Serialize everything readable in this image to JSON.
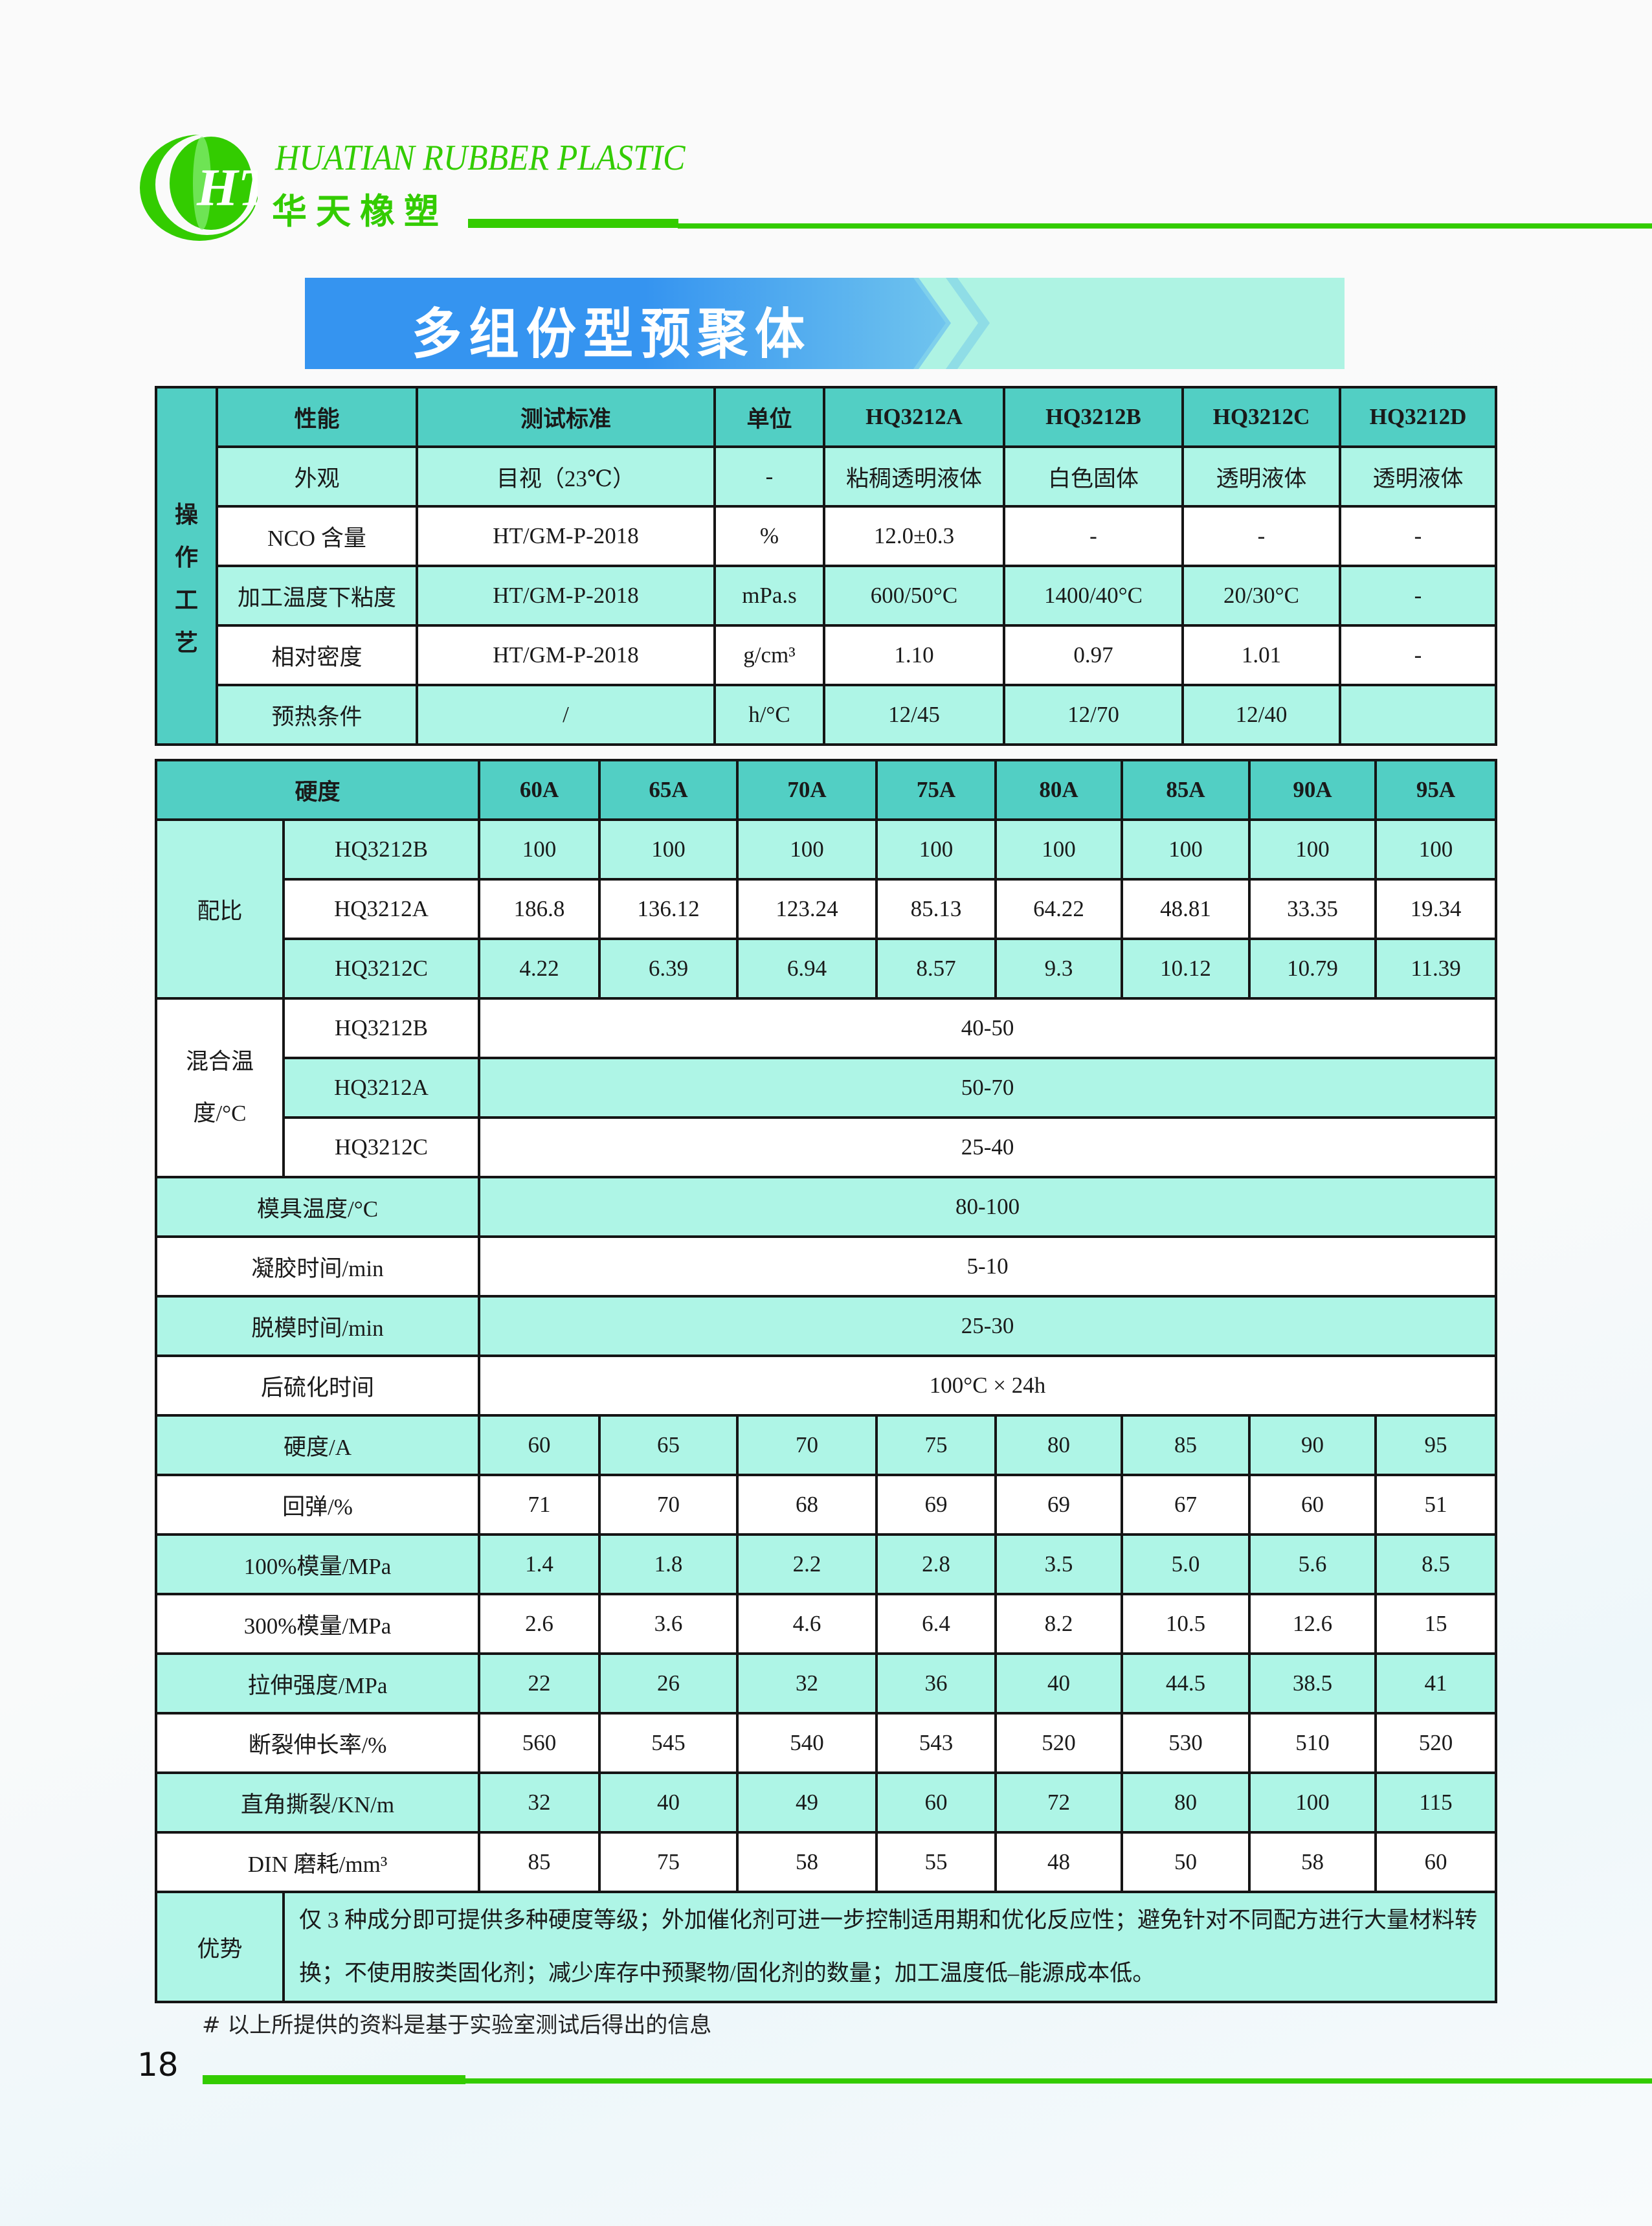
{
  "header": {
    "brand_en": "HUATIAN RUBBER PLASTIC",
    "brand_cn": "华天橡塑",
    "logo_letters": "HT",
    "brand_color": "#33cc00"
  },
  "banner": {
    "title": "多组份型预聚体"
  },
  "colors": {
    "header_cell": "#52cfc4",
    "alt_row": "#aef5e6",
    "banner_blue": "#3594f0"
  },
  "table1": {
    "side_label": [
      "操",
      "作",
      "工",
      "艺"
    ],
    "headers": [
      "性能",
      "测试标准",
      "单位",
      "HQ3212A",
      "HQ3212B",
      "HQ3212C",
      "HQ3212D"
    ],
    "rows": [
      [
        "外观",
        "目视（23℃）",
        "-",
        "粘稠透明液体",
        "白色固体",
        "透明液体",
        "透明液体"
      ],
      [
        "NCO 含量",
        "HT/GM-P-2018",
        "%",
        "12.0±0.3",
        "-",
        "-",
        "-"
      ],
      [
        "加工温度下粘度",
        "HT/GM-P-2018",
        "mPa.s",
        "600/50°C",
        "1400/40°C",
        "20/30°C",
        "-"
      ],
      [
        "相对密度",
        "HT/GM-P-2018",
        "g/cm³",
        "1.10",
        "0.97",
        "1.01",
        "-"
      ],
      [
        "预热条件",
        "/",
        "h/°C",
        "12/45",
        "12/70",
        "12/40",
        ""
      ]
    ]
  },
  "table2": {
    "hardness_label": "硬度",
    "grades": [
      "60A",
      "65A",
      "70A",
      "75A",
      "80A",
      "85A",
      "90A",
      "95A"
    ],
    "ratio": {
      "label": "配比",
      "rows": [
        {
          "name": "HQ3212B",
          "values": [
            "100",
            "100",
            "100",
            "100",
            "100",
            "100",
            "100",
            "100"
          ]
        },
        {
          "name": "HQ3212A",
          "values": [
            "186.8",
            "136.12",
            "123.24",
            "85.13",
            "64.22",
            "48.81",
            "33.35",
            "19.34"
          ]
        },
        {
          "name": "HQ3212C",
          "values": [
            "4.22",
            "6.39",
            "6.94",
            "8.57",
            "9.3",
            "10.12",
            "10.79",
            "11.39"
          ]
        }
      ]
    },
    "mix_temp": {
      "label_line1": "混合温",
      "label_line2": "度/°C",
      "rows": [
        {
          "name": "HQ3212B",
          "value": "40-50"
        },
        {
          "name": "HQ3212A",
          "value": "50-70"
        },
        {
          "name": "HQ3212C",
          "value": "25-40"
        }
      ]
    },
    "process": [
      {
        "label": "模具温度/°C",
        "value": "80-100"
      },
      {
        "label": "凝胶时间/min",
        "value": "5-10"
      },
      {
        "label": "脱模时间/min",
        "value": "25-30"
      },
      {
        "label": "后硫化时间",
        "value": "100°C × 24h"
      }
    ],
    "properties": [
      {
        "label": "硬度/A",
        "values": [
          "60",
          "65",
          "70",
          "75",
          "80",
          "85",
          "90",
          "95"
        ]
      },
      {
        "label": "回弹/%",
        "values": [
          "71",
          "70",
          "68",
          "69",
          "69",
          "67",
          "60",
          "51"
        ]
      },
      {
        "label": "100%模量/MPa",
        "values": [
          "1.4",
          "1.8",
          "2.2",
          "2.8",
          "3.5",
          "5.0",
          "5.6",
          "8.5"
        ]
      },
      {
        "label": "300%模量/MPa",
        "values": [
          "2.6",
          "3.6",
          "4.6",
          "6.4",
          "8.2",
          "10.5",
          "12.6",
          "15"
        ]
      },
      {
        "label": "拉伸强度/MPa",
        "values": [
          "22",
          "26",
          "32",
          "36",
          "40",
          "44.5",
          "38.5",
          "41"
        ]
      },
      {
        "label": "断裂伸长率/%",
        "values": [
          "560",
          "545",
          "540",
          "543",
          "520",
          "530",
          "510",
          "520"
        ]
      },
      {
        "label": "直角撕裂/KN/m",
        "values": [
          "32",
          "40",
          "49",
          "60",
          "72",
          "80",
          "100",
          "115"
        ]
      },
      {
        "label": "DIN 磨耗/mm³",
        "values": [
          "85",
          "75",
          "58",
          "55",
          "48",
          "50",
          "58",
          "60"
        ]
      }
    ],
    "advantage": {
      "label": "优势",
      "text": "仅 3 种成分即可提供多种硬度等级；外加催化剂可进一步控制适用期和优化反应性；避免针对不同配方进行大量材料转换；不使用胺类固化剂；减少库存中预聚物/固化剂的数量；加工温度低–能源成本低。"
    }
  },
  "footnote": "# 以上所提供的资料是基于实验室测试后得出的信息",
  "page_number": "18"
}
